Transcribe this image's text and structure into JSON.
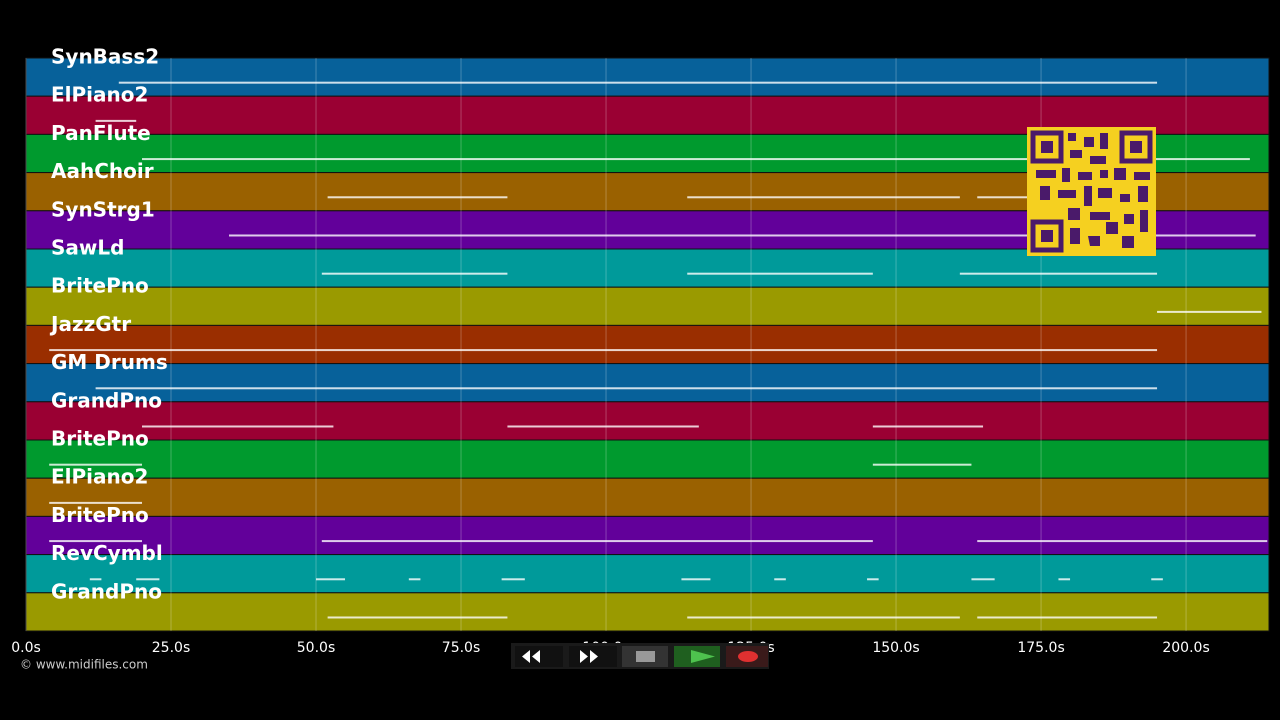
{
  "timeline": {
    "xlim": [
      0,
      214.3
    ],
    "xticks": [
      {
        "value": 0,
        "label": "0.0s"
      },
      {
        "value": 25,
        "label": "25.0s"
      },
      {
        "value": 50,
        "label": "50.0s"
      },
      {
        "value": 75,
        "label": "75.0s"
      },
      {
        "value": 100,
        "label": "100.0s"
      },
      {
        "value": 125,
        "label": "125.0s"
      },
      {
        "value": 150,
        "label": "150.0s"
      },
      {
        "value": 175,
        "label": "175.0s"
      },
      {
        "value": 200,
        "label": "200.0s"
      }
    ],
    "tracks": [
      {
        "name": "SynBass2",
        "color": "#07619a",
        "segments": [
          [
            16,
            195
          ]
        ]
      },
      {
        "name": "ElPiano2",
        "color": "#9a0033",
        "segments": [
          [
            12,
            19
          ]
        ]
      },
      {
        "name": "PanFlute",
        "color": "#009a2e",
        "segments": [
          [
            20,
            211
          ]
        ]
      },
      {
        "name": "AahChoir",
        "color": "#9a6100",
        "segments": [
          [
            52,
            83
          ],
          [
            114,
            161
          ],
          [
            164,
            173
          ]
        ]
      },
      {
        "name": "SynStrg1",
        "color": "#62009a",
        "segments": [
          [
            35,
            212
          ]
        ]
      },
      {
        "name": "SawLd",
        "color": "#009a9a",
        "segments": [
          [
            51,
            83
          ],
          [
            114,
            146
          ],
          [
            161,
            195
          ]
        ]
      },
      {
        "name": "BritePno",
        "color": "#9a9a00",
        "segments": [
          [
            195,
            213
          ]
        ]
      },
      {
        "name": "JazzGtr",
        "color": "#9a2e00",
        "segments": [
          [
            4,
            195
          ]
        ]
      },
      {
        "name": "GM Drums",
        "color": "#07619a",
        "segments": [
          [
            12,
            195
          ]
        ]
      },
      {
        "name": "GrandPno",
        "color": "#9a0033",
        "segments": [
          [
            20,
            53
          ],
          [
            83,
            116
          ],
          [
            146,
            165
          ]
        ]
      },
      {
        "name": "BritePno",
        "color": "#009a2e",
        "segments": [
          [
            4,
            20
          ],
          [
            146,
            163
          ]
        ]
      },
      {
        "name": "ElPiano2",
        "color": "#9a6100",
        "segments": [
          [
            4,
            20
          ]
        ]
      },
      {
        "name": "BritePno",
        "color": "#62009a",
        "segments": [
          [
            4,
            20
          ],
          [
            51,
            146
          ],
          [
            164,
            214
          ]
        ]
      },
      {
        "name": "RevCymbl",
        "color": "#009a9a",
        "segments": [
          [
            11,
            13
          ],
          [
            19,
            23
          ],
          [
            50,
            55
          ],
          [
            66,
            68
          ],
          [
            82,
            86
          ],
          [
            113,
            118
          ],
          [
            129,
            131
          ],
          [
            145,
            147
          ],
          [
            163,
            167
          ],
          [
            178,
            180
          ],
          [
            194,
            196
          ]
        ]
      },
      {
        "name": "GrandPno",
        "color": "#9a9a00",
        "segments": [
          [
            52,
            83
          ],
          [
            114,
            161
          ],
          [
            164,
            195
          ]
        ]
      }
    ]
  },
  "footer": {
    "credit": "© www.midifiles.com"
  }
}
